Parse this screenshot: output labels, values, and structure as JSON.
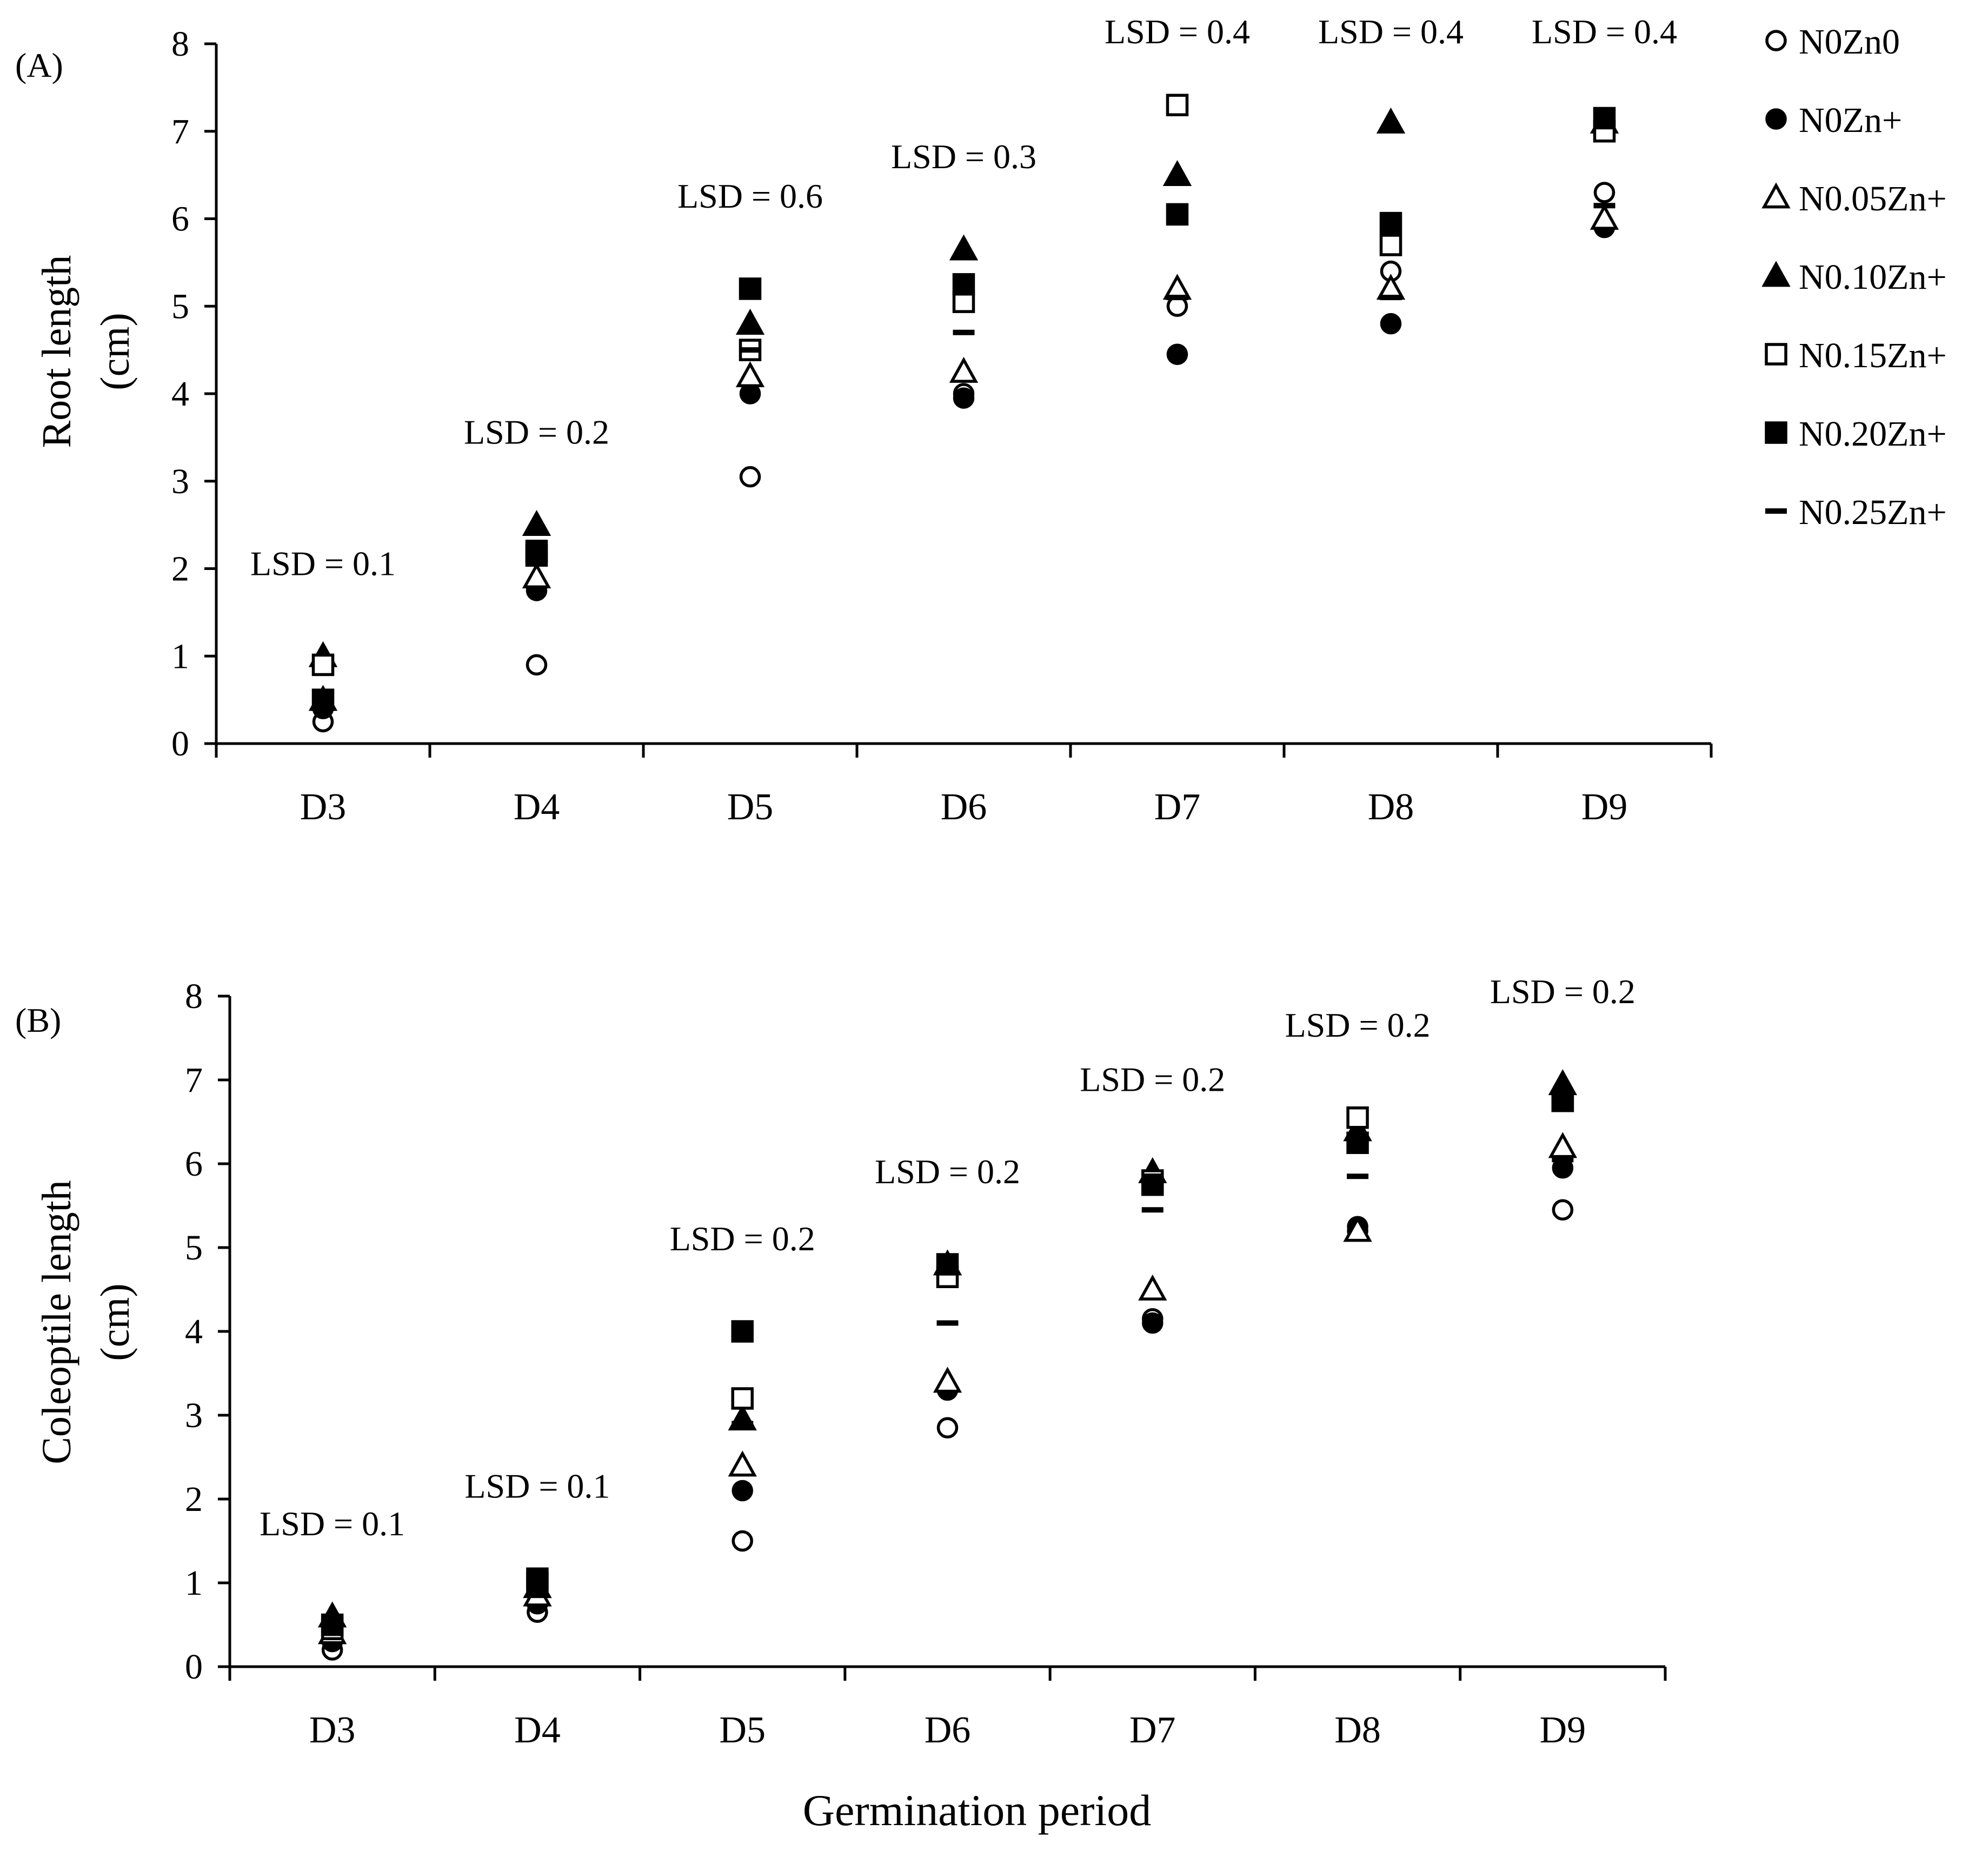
{
  "colors": {
    "ink": "#000000",
    "background": "#ffffff"
  },
  "legend": {
    "position": "top-right",
    "entries": [
      {
        "label": "N0Zn0",
        "marker": "open-circle"
      },
      {
        "label": "N0Zn+",
        "marker": "filled-circle"
      },
      {
        "label": "N0.05Zn+",
        "marker": "open-triangle"
      },
      {
        "label": "N0.10Zn+",
        "marker": "filled-triangle"
      },
      {
        "label": "N0.15Zn+",
        "marker": "open-square"
      },
      {
        "label": "N0.20Zn+",
        "marker": "filled-square"
      },
      {
        "label": "N0.25Zn+",
        "marker": "dash"
      }
    ]
  },
  "shared_xlabel": "Germination period",
  "chart_data": [
    {
      "type": "scatter",
      "panel_label": "(A)",
      "ylabel_line1": "Root length",
      "ylabel_line2": "(cm)",
      "xlabel": "",
      "ylim": [
        0,
        8
      ],
      "yticks": [
        0,
        1,
        2,
        3,
        4,
        5,
        6,
        7,
        8
      ],
      "grid": false,
      "categories": [
        "D3",
        "D4",
        "D5",
        "D6",
        "D7",
        "D8",
        "D9"
      ],
      "annotations": [
        "LSD = 0.1",
        "LSD = 0.2",
        "LSD = 0.6",
        "LSD = 0.3",
        "LSD = 0.4",
        "LSD = 0.4",
        "LSD = 0.4"
      ],
      "series": [
        {
          "name": "N0Zn0",
          "marker": "open-circle",
          "values": [
            0.25,
            0.9,
            3.05,
            4.0,
            5.0,
            5.4,
            6.3
          ]
        },
        {
          "name": "N0Zn+",
          "marker": "filled-circle",
          "values": [
            0.4,
            1.75,
            4.0,
            3.95,
            4.45,
            4.8,
            5.9
          ]
        },
        {
          "name": "N0.05Zn+",
          "marker": "open-triangle",
          "values": [
            0.5,
            1.9,
            4.2,
            4.25,
            5.2,
            5.2,
            6.0
          ]
        },
        {
          "name": "N0.10Zn+",
          "marker": "filled-triangle",
          "values": [
            1.0,
            2.5,
            4.8,
            5.65,
            6.5,
            7.1,
            7.1
          ]
        },
        {
          "name": "N0.15Zn+",
          "marker": "open-square",
          "values": [
            0.9,
            2.2,
            4.5,
            5.05,
            7.3,
            5.7,
            7.0
          ]
        },
        {
          "name": "N0.20Zn+",
          "marker": "filled-square",
          "values": [
            0.5,
            2.15,
            5.2,
            5.25,
            6.05,
            5.95,
            7.15
          ]
        },
        {
          "name": "N0.25Zn+",
          "marker": "dash",
          "values": [
            0.55,
            2.3,
            4.5,
            4.7,
            5.1,
            5.1,
            6.15
          ]
        }
      ]
    },
    {
      "type": "scatter",
      "panel_label": "(B)",
      "ylabel_line1": "Coleoptile length",
      "ylabel_line2": "(cm)",
      "xlabel": "Germination period",
      "ylim": [
        0,
        8
      ],
      "yticks": [
        0,
        1,
        2,
        3,
        4,
        5,
        6,
        7,
        8
      ],
      "grid": false,
      "categories": [
        "D3",
        "D4",
        "D5",
        "D6",
        "D7",
        "D8",
        "D9"
      ],
      "annotations": [
        "LSD = 0.1",
        "LSD = 0.1",
        "LSD = 0.2",
        "LSD = 0.2",
        "LSD = 0.2",
        "LSD = 0.2",
        "LSD = 0.2"
      ],
      "series": [
        {
          "name": "N0Zn0",
          "marker": "open-circle",
          "values": [
            0.2,
            0.65,
            1.5,
            2.85,
            4.15,
            5.2,
            5.45
          ]
        },
        {
          "name": "N0Zn+",
          "marker": "filled-circle",
          "values": [
            0.3,
            0.75,
            2.1,
            3.3,
            4.1,
            5.25,
            5.95
          ]
        },
        {
          "name": "N0.05Zn+",
          "marker": "open-triangle",
          "values": [
            0.4,
            0.85,
            2.4,
            3.4,
            4.5,
            5.2,
            6.2
          ]
        },
        {
          "name": "N0.10Zn+",
          "marker": "filled-triangle",
          "values": [
            0.6,
            0.95,
            2.95,
            4.8,
            5.9,
            6.4,
            6.95
          ]
        },
        {
          "name": "N0.15Zn+",
          "marker": "open-square",
          "values": [
            0.45,
            1.0,
            3.2,
            4.65,
            5.8,
            6.55,
            6.75
          ]
        },
        {
          "name": "N0.20Zn+",
          "marker": "filled-square",
          "values": [
            0.5,
            1.05,
            4.0,
            4.8,
            5.75,
            6.25,
            6.75
          ]
        },
        {
          "name": "N0.25Zn+",
          "marker": "dash",
          "values": [
            0.4,
            0.9,
            2.9,
            4.1,
            5.45,
            5.85,
            6.05
          ]
        }
      ]
    }
  ]
}
